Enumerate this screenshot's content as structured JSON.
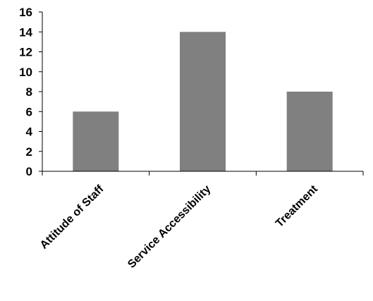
{
  "chart_data": {
    "type": "bar",
    "title": "",
    "xlabel": "",
    "ylabel": "",
    "categories": [
      "Attitude of Staff",
      "Service Accessibility",
      "Treatment"
    ],
    "values": [
      6,
      14,
      8
    ],
    "ylim": [
      0,
      16
    ],
    "yticks": [
      "0",
      "2",
      "4",
      "6",
      "8",
      "10",
      "12",
      "14",
      "16"
    ],
    "grid": false,
    "legend": "none",
    "bar_color": "#808080"
  }
}
